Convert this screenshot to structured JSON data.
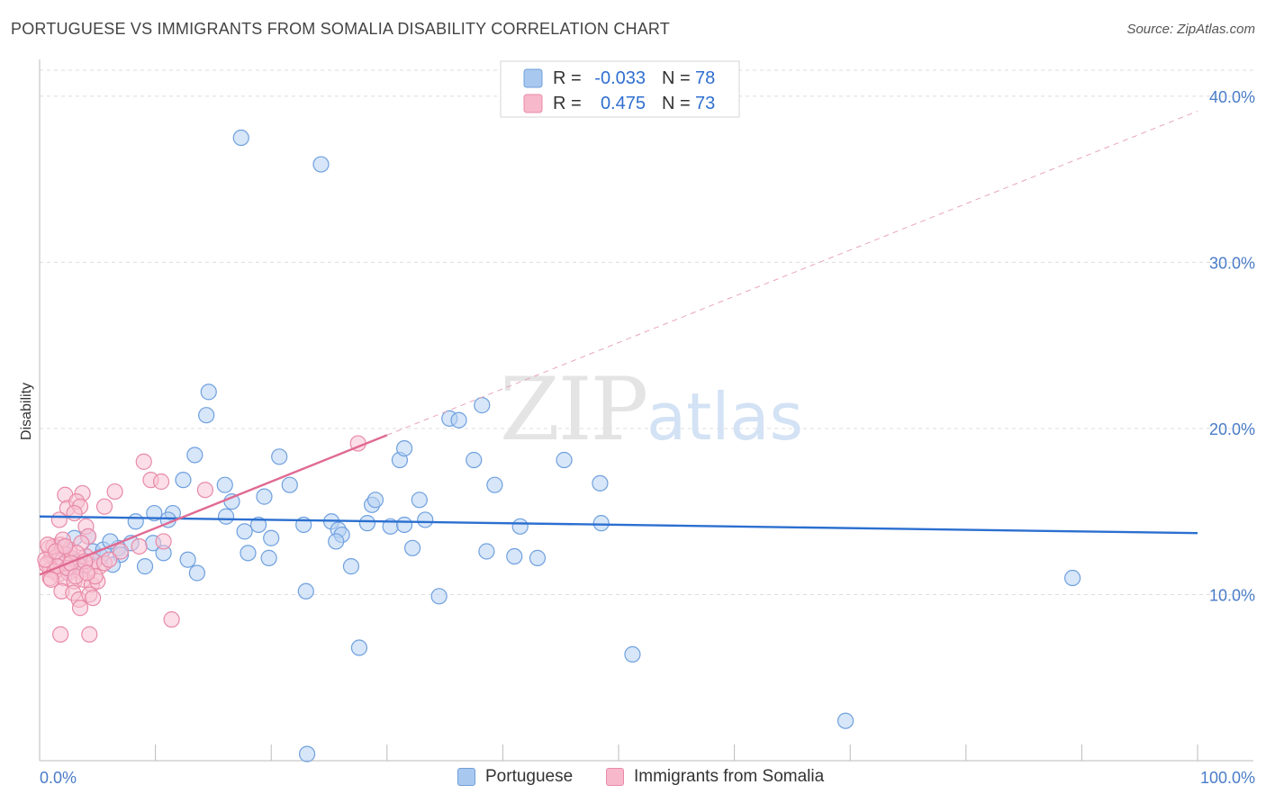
{
  "title": "PORTUGUESE VS IMMIGRANTS FROM SOMALIA DISABILITY CORRELATION CHART",
  "source": "Source: ZipAtlas.com",
  "watermark": {
    "zip": "ZIP",
    "atlas": "atlas"
  },
  "legend": {
    "rows": [
      {
        "r_label": "R =",
        "r_value": "-0.033",
        "n_label": "N =",
        "n_value": "78",
        "color": "#a8c8f0",
        "stroke": "#6f9fd8"
      },
      {
        "r_label": "R =",
        "r_value": "0.475",
        "n_label": "N =",
        "n_value": "73",
        "color": "#f7b8cc",
        "stroke": "#e88aa8"
      }
    ]
  },
  "bottom_legend": [
    {
      "label": "Portuguese",
      "color": "#a8c8f0",
      "stroke": "#6f9fd8"
    },
    {
      "label": "Immigrants from Somalia",
      "color": "#f7b8cc",
      "stroke": "#e88aa8"
    }
  ],
  "chart_data": {
    "type": "scatter",
    "title": "PORTUGUESE VS IMMIGRANTS FROM SOMALIA DISABILITY CORRELATION CHART",
    "xlabel": "",
    "ylabel": "Disability",
    "xlim": [
      0,
      100
    ],
    "ylim": [
      0,
      42
    ],
    "x_tick_labels": [
      "0.0%",
      "100.0%"
    ],
    "y_ticks": [
      10,
      20,
      30,
      40
    ],
    "y_tick_labels": [
      "10.0%",
      "20.0%",
      "30.0%",
      "40.0%"
    ],
    "grid": "horizontal dashed",
    "legend_position": "top-center",
    "series": [
      {
        "name": "Portuguese",
        "color": "#6fa0df",
        "fill": "#b7d2f3",
        "points": [
          [
            17.4,
            37.5
          ],
          [
            24.3,
            35.9
          ],
          [
            14.6,
            22.2
          ],
          [
            14.4,
            20.8
          ],
          [
            13.4,
            18.4
          ],
          [
            20.7,
            18.3
          ],
          [
            12.4,
            16.9
          ],
          [
            16.0,
            16.6
          ],
          [
            21.6,
            16.6
          ],
          [
            16.6,
            15.6
          ],
          [
            19.4,
            15.9
          ],
          [
            9.9,
            14.9
          ],
          [
            11.5,
            14.9
          ],
          [
            11.1,
            14.5
          ],
          [
            8.3,
            14.4
          ],
          [
            16.1,
            14.7
          ],
          [
            18.9,
            14.2
          ],
          [
            22.8,
            14.2
          ],
          [
            25.2,
            14.4
          ],
          [
            25.8,
            13.9
          ],
          [
            26.1,
            13.6
          ],
          [
            28.3,
            14.3
          ],
          [
            30.3,
            14.1
          ],
          [
            31.5,
            14.2
          ],
          [
            33.3,
            14.5
          ],
          [
            28.7,
            15.4
          ],
          [
            29.0,
            15.7
          ],
          [
            32.8,
            15.7
          ],
          [
            31.1,
            18.1
          ],
          [
            31.5,
            18.8
          ],
          [
            35.4,
            20.6
          ],
          [
            36.2,
            20.5
          ],
          [
            38.2,
            21.4
          ],
          [
            37.5,
            18.1
          ],
          [
            39.3,
            16.6
          ],
          [
            45.3,
            18.1
          ],
          [
            48.4,
            16.7
          ],
          [
            48.5,
            14.3
          ],
          [
            3.0,
            13.4
          ],
          [
            4.2,
            13.5
          ],
          [
            4.6,
            12.6
          ],
          [
            5.3,
            12.3
          ],
          [
            5.5,
            12.7
          ],
          [
            6.8,
            12.8
          ],
          [
            7.0,
            12.4
          ],
          [
            7.9,
            13.1
          ],
          [
            9.8,
            13.1
          ],
          [
            10.7,
            12.5
          ],
          [
            6.3,
            11.8
          ],
          [
            9.1,
            11.7
          ],
          [
            12.8,
            12.1
          ],
          [
            13.6,
            11.3
          ],
          [
            18.0,
            12.5
          ],
          [
            19.8,
            12.2
          ],
          [
            20.0,
            13.4
          ],
          [
            25.6,
            13.2
          ],
          [
            26.9,
            11.7
          ],
          [
            32.2,
            12.8
          ],
          [
            38.6,
            12.6
          ],
          [
            41.5,
            14.1
          ],
          [
            41.0,
            12.3
          ],
          [
            43.0,
            12.2
          ],
          [
            23.0,
            10.2
          ],
          [
            34.5,
            9.9
          ],
          [
            27.6,
            6.8
          ],
          [
            51.2,
            6.4
          ],
          [
            69.6,
            2.4
          ],
          [
            23.1,
            0.4
          ],
          [
            89.2,
            11.0
          ],
          [
            1.5,
            12.0
          ],
          [
            2.2,
            12.5
          ],
          [
            3.3,
            11.9
          ],
          [
            3.8,
            11.7
          ],
          [
            2.7,
            12.2
          ],
          [
            1.8,
            12.8
          ],
          [
            2.5,
            11.5
          ],
          [
            17.7,
            13.8
          ],
          [
            6.1,
            13.2
          ]
        ]
      },
      {
        "name": "Immigrants from Somalia",
        "color": "#e88aa8",
        "fill": "#f8c2d3",
        "points": [
          [
            27.5,
            19.1
          ],
          [
            9.0,
            18.0
          ],
          [
            9.6,
            16.9
          ],
          [
            10.5,
            16.8
          ],
          [
            14.3,
            16.3
          ],
          [
            6.5,
            16.2
          ],
          [
            3.7,
            16.1
          ],
          [
            2.2,
            16.0
          ],
          [
            5.6,
            15.3
          ],
          [
            2.4,
            15.2
          ],
          [
            3.2,
            15.6
          ],
          [
            3.5,
            15.3
          ],
          [
            3.0,
            14.9
          ],
          [
            1.7,
            14.5
          ],
          [
            4.0,
            14.1
          ],
          [
            4.2,
            13.5
          ],
          [
            10.7,
            13.2
          ],
          [
            8.6,
            12.9
          ],
          [
            7.0,
            12.6
          ],
          [
            2.3,
            12.4
          ],
          [
            4.0,
            12.3
          ],
          [
            1.0,
            12.3
          ],
          [
            1.5,
            12.0
          ],
          [
            0.7,
            11.9
          ],
          [
            1.1,
            12.4
          ],
          [
            2.0,
            12.1
          ],
          [
            2.8,
            12.2
          ],
          [
            3.3,
            11.8
          ],
          [
            0.9,
            11.5
          ],
          [
            1.6,
            11.2
          ],
          [
            2.5,
            11.3
          ],
          [
            3.5,
            11.4
          ],
          [
            4.4,
            11.6
          ],
          [
            5.2,
            11.7
          ],
          [
            0.8,
            12.8
          ],
          [
            1.8,
            13.0
          ],
          [
            2.6,
            12.7
          ],
          [
            3.6,
            13.1
          ],
          [
            4.7,
            12.0
          ],
          [
            0.6,
            11.8
          ],
          [
            1.3,
            11.4
          ],
          [
            2.1,
            11.0
          ],
          [
            3.0,
            10.8
          ],
          [
            3.8,
            10.9
          ],
          [
            4.5,
            10.6
          ],
          [
            5.0,
            10.8
          ],
          [
            1.9,
            10.2
          ],
          [
            2.9,
            10.1
          ],
          [
            3.4,
            9.7
          ],
          [
            4.3,
            10.0
          ],
          [
            4.6,
            9.8
          ],
          [
            3.5,
            9.2
          ],
          [
            11.4,
            8.5
          ],
          [
            1.8,
            7.6
          ],
          [
            4.3,
            7.6
          ],
          [
            1.2,
            12.9
          ],
          [
            2.0,
            13.3
          ],
          [
            0.9,
            11.0
          ],
          [
            1.5,
            11.7
          ],
          [
            2.4,
            11.6
          ],
          [
            3.2,
            12.5
          ],
          [
            0.5,
            12.1
          ],
          [
            1.0,
            10.9
          ],
          [
            2.7,
            11.9
          ],
          [
            3.9,
            12.0
          ],
          [
            4.8,
            11.1
          ],
          [
            5.6,
            11.9
          ],
          [
            0.7,
            13.0
          ],
          [
            1.4,
            12.6
          ],
          [
            2.2,
            12.9
          ],
          [
            3.1,
            11.1
          ],
          [
            4.1,
            11.3
          ],
          [
            6.0,
            12.1
          ]
        ]
      }
    ],
    "trend_lines": [
      {
        "series": "Portuguese",
        "x": [
          0,
          100
        ],
        "y": [
          14.7,
          13.7
        ],
        "style": "solid",
        "color": "#2b6fd0"
      },
      {
        "series": "Immigrants from Somalia",
        "x": [
          0,
          30
        ],
        "y": [
          11.2,
          19.6
        ],
        "style": "solid",
        "color": "#e06a92"
      },
      {
        "series": "Immigrants from Somalia",
        "x": [
          30,
          100
        ],
        "y": [
          19.6,
          39.1
        ],
        "style": "dashed",
        "color": "#e8a4bd"
      }
    ]
  }
}
